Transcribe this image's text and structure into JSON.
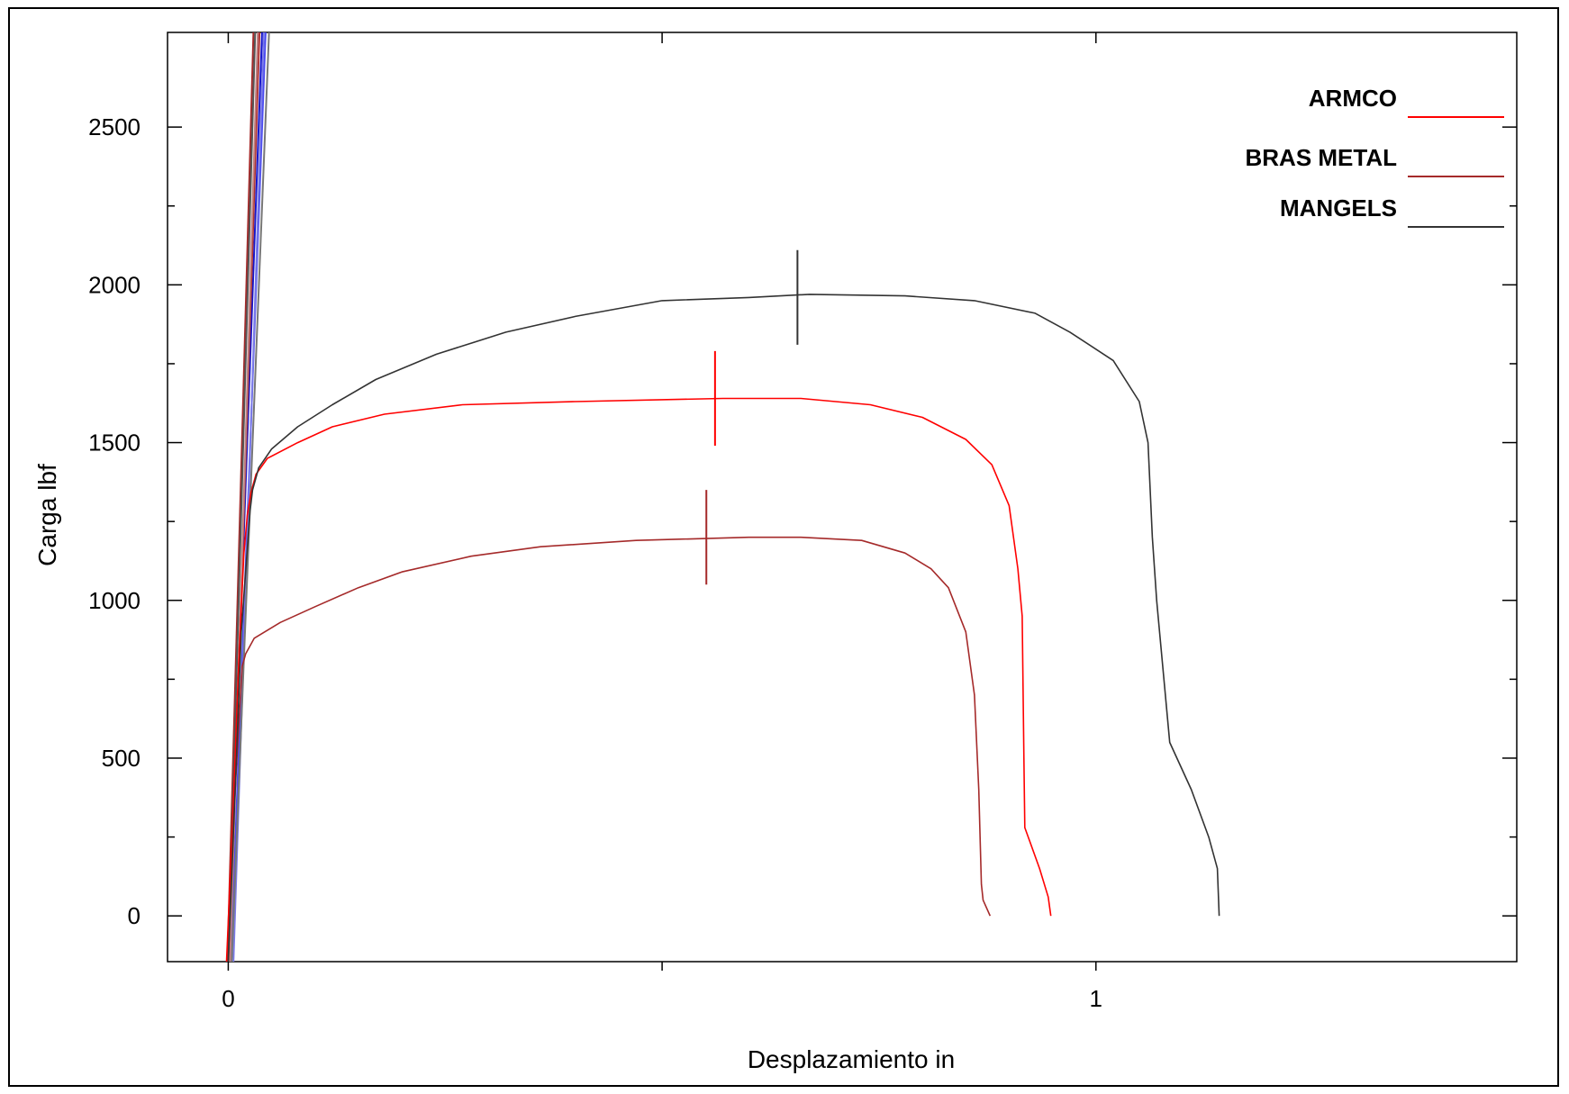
{
  "chart_data": {
    "type": "line",
    "title": "",
    "xlabel": "Desplazamiento in",
    "ylabel": "Carga lbf",
    "xlim": [
      -0.07,
      1.485
    ],
    "ylim": [
      -145,
      2800
    ],
    "x_ticks": [
      0,
      0.5,
      1
    ],
    "x_tick_labels": [
      "0",
      "",
      "1"
    ],
    "y_ticks": [
      0,
      250,
      500,
      750,
      1000,
      1250,
      1500,
      1750,
      2000,
      2250,
      2500
    ],
    "y_tick_labels": [
      "0",
      "",
      "500",
      "",
      "1000",
      "",
      "1500",
      "",
      "2000",
      "",
      "2500"
    ],
    "grid": false,
    "legend_position": "top-right",
    "series": [
      {
        "name": "ARMCO",
        "color": "#ff0000",
        "points": [
          [
            -0.002,
            -145
          ],
          [
            0.005,
            300
          ],
          [
            0.012,
            800
          ],
          [
            0.018,
            1150
          ],
          [
            0.022,
            1270
          ],
          [
            0.026,
            1340
          ],
          [
            0.032,
            1400
          ],
          [
            0.045,
            1450
          ],
          [
            0.08,
            1500
          ],
          [
            0.12,
            1550
          ],
          [
            0.18,
            1590
          ],
          [
            0.27,
            1620
          ],
          [
            0.4,
            1630
          ],
          [
            0.57,
            1640
          ],
          [
            0.66,
            1640
          ],
          [
            0.74,
            1620
          ],
          [
            0.8,
            1580
          ],
          [
            0.85,
            1510
          ],
          [
            0.88,
            1430
          ],
          [
            0.9,
            1300
          ],
          [
            0.91,
            1100
          ],
          [
            0.915,
            950
          ],
          [
            0.917,
            500
          ],
          [
            0.918,
            280
          ],
          [
            0.935,
            150
          ],
          [
            0.945,
            60
          ],
          [
            0.948,
            0
          ]
        ],
        "marker": {
          "x": 0.561,
          "y": 1640,
          "half_height": 150
        }
      },
      {
        "name": "BRAS METAL",
        "color": "#a52a2a",
        "points": [
          [
            0.0,
            -145
          ],
          [
            0.006,
            300
          ],
          [
            0.012,
            600
          ],
          [
            0.016,
            790
          ],
          [
            0.02,
            830
          ],
          [
            0.03,
            880
          ],
          [
            0.06,
            930
          ],
          [
            0.1,
            980
          ],
          [
            0.15,
            1040
          ],
          [
            0.2,
            1090
          ],
          [
            0.28,
            1140
          ],
          [
            0.36,
            1170
          ],
          [
            0.47,
            1190
          ],
          [
            0.6,
            1200
          ],
          [
            0.66,
            1200
          ],
          [
            0.73,
            1190
          ],
          [
            0.78,
            1150
          ],
          [
            0.81,
            1100
          ],
          [
            0.83,
            1040
          ],
          [
            0.85,
            900
          ],
          [
            0.86,
            700
          ],
          [
            0.865,
            400
          ],
          [
            0.868,
            100
          ],
          [
            0.87,
            50
          ],
          [
            0.878,
            0
          ]
        ],
        "marker": {
          "x": 0.551,
          "y": 1200,
          "half_height": 150
        }
      },
      {
        "name": "MANGELS",
        "color": "#333333",
        "points": [
          [
            0.0,
            -145
          ],
          [
            0.008,
            400
          ],
          [
            0.015,
            900
          ],
          [
            0.025,
            1280
          ],
          [
            0.028,
            1350
          ],
          [
            0.035,
            1420
          ],
          [
            0.05,
            1480
          ],
          [
            0.08,
            1550
          ],
          [
            0.12,
            1620
          ],
          [
            0.17,
            1700
          ],
          [
            0.24,
            1780
          ],
          [
            0.32,
            1850
          ],
          [
            0.4,
            1900
          ],
          [
            0.5,
            1950
          ],
          [
            0.6,
            1960
          ],
          [
            0.67,
            1970
          ],
          [
            0.78,
            1965
          ],
          [
            0.86,
            1950
          ],
          [
            0.93,
            1910
          ],
          [
            0.97,
            1850
          ],
          [
            1.02,
            1760
          ],
          [
            1.05,
            1630
          ],
          [
            1.06,
            1500
          ],
          [
            1.065,
            1200
          ],
          [
            1.07,
            1000
          ],
          [
            1.085,
            550
          ],
          [
            1.11,
            400
          ],
          [
            1.13,
            250
          ],
          [
            1.14,
            150
          ],
          [
            1.142,
            0
          ]
        ],
        "marker": {
          "x": 0.656,
          "y": 1960,
          "half_height": 150
        }
      }
    ],
    "initial_lines": [
      {
        "color": "#1515c8",
        "points": [
          [
            0.0,
            -145
          ],
          [
            0.039,
            2800
          ]
        ]
      },
      {
        "color": "#4a4af0",
        "points": [
          [
            0.003,
            -145
          ],
          [
            0.043,
            2800
          ]
        ]
      },
      {
        "color": "#7a7ae8",
        "points": [
          [
            0.006,
            -145
          ],
          [
            0.041,
            2800
          ]
        ]
      },
      {
        "color": "#a52a2a",
        "points": [
          [
            -0.001,
            -145
          ],
          [
            0.029,
            2800
          ]
        ]
      },
      {
        "color": "#b03030",
        "points": [
          [
            0.001,
            -145
          ],
          [
            0.036,
            2800
          ]
        ]
      },
      {
        "color": "#555555",
        "points": [
          [
            0.0,
            -145
          ],
          [
            0.031,
            2800
          ]
        ]
      },
      {
        "color": "#777777",
        "points": [
          [
            0.004,
            -145
          ],
          [
            0.047,
            2800
          ]
        ]
      },
      {
        "color": "#c08080",
        "points": [
          [
            0.002,
            -145
          ],
          [
            0.034,
            2800
          ]
        ]
      }
    ]
  }
}
